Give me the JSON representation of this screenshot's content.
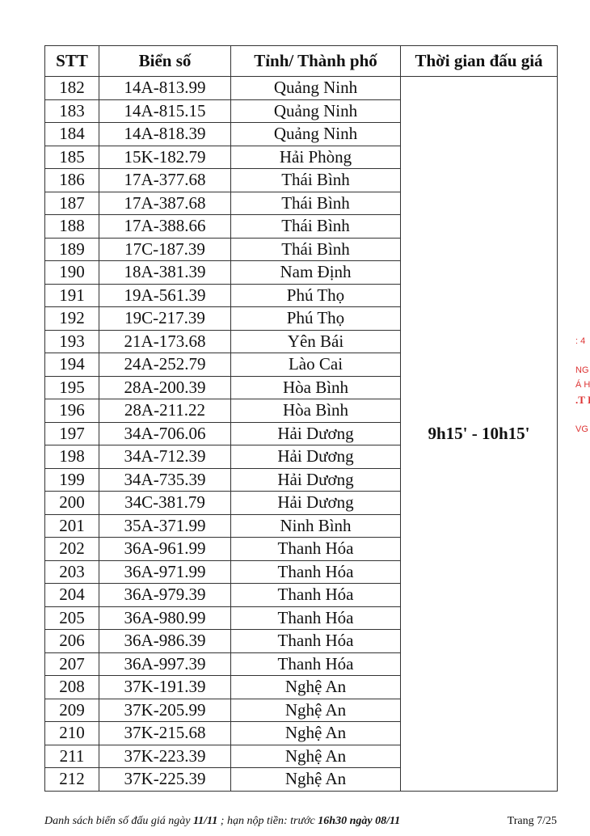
{
  "table": {
    "headers": [
      "STT",
      "Biển số",
      "Tỉnh/ Thành phố",
      "Thời gian đấu giá"
    ],
    "time": "9h15' - 10h15'",
    "rows": [
      [
        "182",
        "14A-813.99",
        "Quảng Ninh"
      ],
      [
        "183",
        "14A-815.15",
        "Quảng Ninh"
      ],
      [
        "184",
        "14A-818.39",
        "Quảng Ninh"
      ],
      [
        "185",
        "15K-182.79",
        "Hải Phòng"
      ],
      [
        "186",
        "17A-377.68",
        "Thái Bình"
      ],
      [
        "187",
        "17A-387.68",
        "Thái Bình"
      ],
      [
        "188",
        "17A-388.66",
        "Thái Bình"
      ],
      [
        "189",
        "17C-187.39",
        "Thái Bình"
      ],
      [
        "190",
        "18A-381.39",
        "Nam Định"
      ],
      [
        "191",
        "19A-561.39",
        "Phú Thọ"
      ],
      [
        "192",
        "19C-217.39",
        "Phú Thọ"
      ],
      [
        "193",
        "21A-173.68",
        "Yên Bái"
      ],
      [
        "194",
        "24A-252.79",
        "Lào Cai"
      ],
      [
        "195",
        "28A-200.39",
        "Hòa Bình"
      ],
      [
        "196",
        "28A-211.22",
        "Hòa Bình"
      ],
      [
        "197",
        "34A-706.06",
        "Hải Dương"
      ],
      [
        "198",
        "34A-712.39",
        "Hải Dương"
      ],
      [
        "199",
        "34A-735.39",
        "Hải Dương"
      ],
      [
        "200",
        "34C-381.79",
        "Hải Dương"
      ],
      [
        "201",
        "35A-371.99",
        "Ninh Bình"
      ],
      [
        "202",
        "36A-961.99",
        "Thanh Hóa"
      ],
      [
        "203",
        "36A-971.99",
        "Thanh Hóa"
      ],
      [
        "204",
        "36A-979.39",
        "Thanh Hóa"
      ],
      [
        "205",
        "36A-980.99",
        "Thanh Hóa"
      ],
      [
        "206",
        "36A-986.39",
        "Thanh Hóa"
      ],
      [
        "207",
        "36A-997.39",
        "Thanh Hóa"
      ],
      [
        "208",
        "37K-191.39",
        "Nghệ An"
      ],
      [
        "209",
        "37K-205.99",
        "Nghệ An"
      ],
      [
        "210",
        "37K-215.68",
        "Nghệ An"
      ],
      [
        "211",
        "37K-223.39",
        "Nghệ An"
      ],
      [
        "212",
        "37K-225.39",
        "Nghệ An"
      ]
    ]
  },
  "footer": {
    "text_1": "Danh sách biển số đấu giá ngày ",
    "date": "11/11",
    "text_2": " ; hạn nộp tiền: trước ",
    "deadline": "16h30 ngày 08/11",
    "page": "Trang 7/25"
  },
  "stamp": {
    "lines": [
      ": 4",
      "NG",
      "Á HỌ",
      ".T I",
      "VG -"
    ],
    "color": "#d33333"
  }
}
